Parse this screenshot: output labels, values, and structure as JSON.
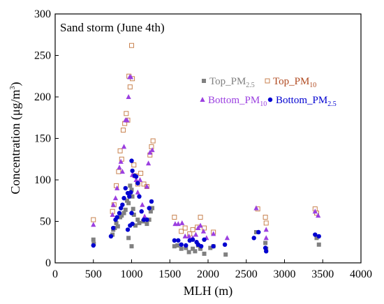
{
  "chart_data": {
    "type": "scatter",
    "title": "Sand storm (June 4th)",
    "xlabel": "MLH (m)",
    "ylabel_main": "Concentration (μg/m",
    "ylabel_sup": "3",
    "ylabel_close": ")",
    "xlim": [
      0,
      4000
    ],
    "ylim": [
      0,
      300
    ],
    "xticks": [
      0,
      500,
      1000,
      1500,
      2000,
      2500,
      3000,
      3500,
      4000
    ],
    "yticks": [
      0,
      50,
      100,
      150,
      200,
      250,
      300
    ],
    "grid": false,
    "legend_position": "inside, upper-right",
    "series": [
      {
        "name": "Top_PM2.5",
        "label_main": "Top_PM",
        "label_sub": "2.5",
        "marker": "square-filled",
        "color": "#808080",
        "points": [
          [
            500,
            28
          ],
          [
            505,
            23
          ],
          [
            750,
            34
          ],
          [
            760,
            40
          ],
          [
            780,
            42
          ],
          [
            800,
            48
          ],
          [
            820,
            44
          ],
          [
            850,
            55
          ],
          [
            870,
            57
          ],
          [
            900,
            60
          ],
          [
            920,
            64
          ],
          [
            940,
            75
          ],
          [
            960,
            72
          ],
          [
            980,
            93
          ],
          [
            1000,
            88
          ],
          [
            1010,
            80
          ],
          [
            1020,
            65
          ],
          [
            1030,
            58
          ],
          [
            1050,
            45
          ],
          [
            1080,
            52
          ],
          [
            1100,
            48
          ],
          [
            1150,
            50
          ],
          [
            1200,
            47
          ],
          [
            1230,
            52
          ],
          [
            1250,
            62
          ],
          [
            1270,
            66
          ],
          [
            960,
            30
          ],
          [
            1000,
            20
          ],
          [
            1560,
            20
          ],
          [
            1600,
            21
          ],
          [
            1650,
            17
          ],
          [
            1710,
            18
          ],
          [
            1750,
            13
          ],
          [
            1800,
            17
          ],
          [
            1830,
            14
          ],
          [
            1870,
            21
          ],
          [
            1900,
            17
          ],
          [
            1950,
            11
          ],
          [
            2030,
            18
          ],
          [
            2070,
            20
          ],
          [
            2230,
            10
          ],
          [
            2630,
            37
          ],
          [
            2750,
            24
          ],
          [
            2760,
            17
          ],
          [
            3420,
            30
          ],
          [
            3450,
            22
          ]
        ]
      },
      {
        "name": "Top_PM10",
        "label_main": "Top_PM",
        "label_sub": "10",
        "marker": "square-open",
        "color": "#c8824f",
        "points": [
          [
            500,
            52
          ],
          [
            750,
            62
          ],
          [
            770,
            70
          ],
          [
            800,
            93
          ],
          [
            830,
            110
          ],
          [
            850,
            135
          ],
          [
            870,
            125
          ],
          [
            890,
            160
          ],
          [
            910,
            168
          ],
          [
            930,
            180
          ],
          [
            950,
            172
          ],
          [
            965,
            225
          ],
          [
            980,
            212
          ],
          [
            1000,
            262
          ],
          [
            1010,
            222
          ],
          [
            1030,
            118
          ],
          [
            1050,
            105
          ],
          [
            1080,
            95
          ],
          [
            1120,
            108
          ],
          [
            1160,
            95
          ],
          [
            1200,
            92
          ],
          [
            1240,
            130
          ],
          [
            1260,
            140
          ],
          [
            1280,
            147
          ],
          [
            1560,
            55
          ],
          [
            1650,
            38
          ],
          [
            1700,
            42
          ],
          [
            1760,
            35
          ],
          [
            1800,
            40
          ],
          [
            1860,
            43
          ],
          [
            1900,
            55
          ],
          [
            1950,
            42
          ],
          [
            2070,
            37
          ],
          [
            2650,
            65
          ],
          [
            2750,
            55
          ],
          [
            2760,
            48
          ],
          [
            3400,
            65
          ],
          [
            3420,
            60
          ]
        ]
      },
      {
        "name": "Bottom_PM10",
        "label_main": "Bottom_PM",
        "label_sub": "10",
        "marker": "triangle-filled",
        "color": "#9b3fe0",
        "points": [
          [
            500,
            46
          ],
          [
            750,
            58
          ],
          [
            760,
            70
          ],
          [
            790,
            78
          ],
          [
            810,
            90
          ],
          [
            840,
            115
          ],
          [
            860,
            122
          ],
          [
            880,
            110
          ],
          [
            900,
            140
          ],
          [
            920,
            172
          ],
          [
            940,
            172
          ],
          [
            960,
            200
          ],
          [
            975,
            224
          ],
          [
            990,
            224
          ],
          [
            1010,
            106
          ],
          [
            1040,
            105
          ],
          [
            1060,
            100
          ],
          [
            1080,
            85
          ],
          [
            1110,
            100
          ],
          [
            1140,
            70
          ],
          [
            1170,
            56
          ],
          [
            1200,
            92
          ],
          [
            1220,
            120
          ],
          [
            1240,
            133
          ],
          [
            1270,
            136
          ],
          [
            1570,
            47
          ],
          [
            1610,
            47
          ],
          [
            1660,
            48
          ],
          [
            1700,
            32
          ],
          [
            1750,
            32
          ],
          [
            1800,
            30
          ],
          [
            1840,
            34
          ],
          [
            1870,
            42
          ],
          [
            1900,
            45
          ],
          [
            1940,
            38
          ],
          [
            1980,
            30
          ],
          [
            2070,
            35
          ],
          [
            2250,
            30
          ],
          [
            2630,
            66
          ],
          [
            2760,
            40
          ],
          [
            2760,
            30
          ],
          [
            3400,
            62
          ],
          [
            3440,
            57
          ]
        ]
      },
      {
        "name": "Bottom_PM2.5",
        "label_main": "Bottom_PM",
        "label_sub": "2.5",
        "marker": "circle-filled",
        "color": "#0000d0",
        "points": [
          [
            500,
            21
          ],
          [
            730,
            32
          ],
          [
            760,
            42
          ],
          [
            790,
            52
          ],
          [
            810,
            55
          ],
          [
            840,
            60
          ],
          [
            860,
            66
          ],
          [
            880,
            70
          ],
          [
            900,
            78
          ],
          [
            920,
            90
          ],
          [
            950,
            84
          ],
          [
            970,
            80
          ],
          [
            990,
            85
          ],
          [
            1000,
            123
          ],
          [
            1010,
            111
          ],
          [
            1040,
            105
          ],
          [
            1060,
            104
          ],
          [
            1080,
            96
          ],
          [
            1100,
            80
          ],
          [
            1130,
            62
          ],
          [
            1160,
            52
          ],
          [
            1200,
            52
          ],
          [
            1230,
            66
          ],
          [
            1260,
            74
          ],
          [
            950,
            40
          ],
          [
            980,
            45
          ],
          [
            1000,
            60
          ],
          [
            1010,
            47
          ],
          [
            1560,
            27
          ],
          [
            1610,
            27
          ],
          [
            1650,
            22
          ],
          [
            1710,
            21
          ],
          [
            1760,
            27
          ],
          [
            1800,
            28
          ],
          [
            1850,
            25
          ],
          [
            1870,
            22
          ],
          [
            1910,
            20
          ],
          [
            1950,
            28
          ],
          [
            2070,
            20
          ],
          [
            2220,
            22
          ],
          [
            2600,
            30
          ],
          [
            2660,
            37
          ],
          [
            2750,
            18
          ],
          [
            2760,
            14
          ],
          [
            3400,
            34
          ],
          [
            3450,
            32
          ]
        ]
      }
    ]
  }
}
